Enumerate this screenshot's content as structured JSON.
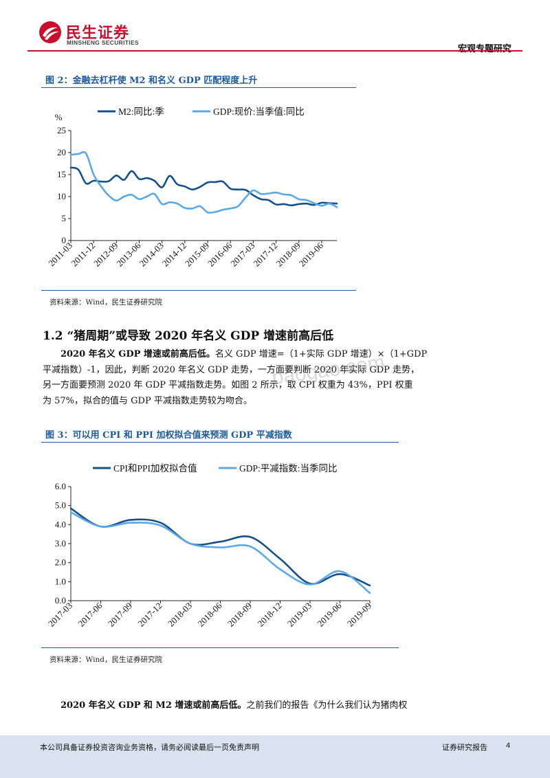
{
  "header": {
    "brand_cn": "民生证券",
    "brand_en": "MINSHENG SECURITIES",
    "report_type": "宏观专题研究",
    "brand_color": "#c8102e"
  },
  "figure2": {
    "title": "图 2：金融去杠杆使 M2 和名义 GDP 匹配程度上升",
    "source": "资料来源：Wind，民生证券研究院"
  },
  "section": {
    "title": "1.2 “猪周期”或导致 2020 年名义 GDP 增速前高后低"
  },
  "paragraph1": {
    "lead": "2020 年名义 GDP 增速或前高后低。",
    "line1_rest": "名义 GDP 增速=（1+实际 GDP 增速）×（1+GDP",
    "line2": "平减指数）-1，因此，判断 2020 年名义 GDP 走势，一方面要判断 2020 年实际 GDP 走势，",
    "line3": "另一方面要预测 2020 年 GDP 平减指数走势。如图 2 所示，取 CPI 权重为 43%，PPI 权重",
    "line4": "为 57%，拟合的值与 GDP 平减指数走势较为吻合。"
  },
  "watermark": "baogao.com",
  "figure3": {
    "title": "图 3：可以用 CPI 和 PPI 加权拟合值来预测 GDP 平减指数",
    "source": "资料来源：Wind，民生证券研究院"
  },
  "paragraph2": {
    "lead": "2020 年名义 GDP 和 M2 增速或前高后低。",
    "rest": "之前我们的报告《为什么我们认为猪肉权"
  },
  "footer": {
    "disclaimer": "本公司具备证券投资咨询业务资格，请务必阅读最后一页免责声明",
    "report_label": "证券研究报告",
    "page": "4"
  },
  "chart_data": [
    {
      "type": "line",
      "y_unit_label": "%",
      "ylim": [
        0,
        25
      ],
      "yticks": [
        "0",
        "5",
        "10",
        "15",
        "20",
        "25"
      ],
      "xlim": [
        0,
        35
      ],
      "xtick_labels": [
        "2011-03",
        "2011-12",
        "2012-09",
        "2013-06",
        "2014-03",
        "2014-12",
        "2015-09",
        "2016-06",
        "2017-03",
        "2017-12",
        "2018-09",
        "2019-06"
      ],
      "xtick_index": [
        0,
        3,
        6,
        9,
        12,
        15,
        18,
        21,
        24,
        27,
        30,
        33
      ],
      "legend_position": "top",
      "series": [
        {
          "name": "M2:同比:季",
          "color": "#15508a",
          "values": [
            16.6,
            16.1,
            13.0,
            13.6,
            13.4,
            13.5,
            14.8,
            13.8,
            15.8,
            14.0,
            14.2,
            13.6,
            12.1,
            14.7,
            12.8,
            12.3,
            11.6,
            12.2,
            13.2,
            13.3,
            13.4,
            11.8,
            11.6,
            11.5,
            10.3,
            9.4,
            9.2,
            8.2,
            8.3,
            8.0,
            8.3,
            8.4,
            8.1,
            8.6,
            8.5,
            8.4
          ]
        },
        {
          "name": "GDP:现价:当季值:同比",
          "color": "#5ba8e6",
          "values": [
            19.5,
            19.7,
            19.8,
            15.0,
            12.3,
            10.2,
            9.1,
            10.0,
            10.4,
            9.4,
            10.0,
            10.6,
            8.3,
            8.7,
            8.4,
            7.4,
            7.3,
            7.8,
            6.4,
            6.5,
            7.0,
            7.3,
            7.8,
            9.8,
            11.4,
            10.6,
            10.7,
            10.9,
            10.5,
            10.3,
            9.4,
            9.2,
            8.5,
            7.9,
            8.4,
            7.6
          ]
        }
      ]
    },
    {
      "type": "line",
      "ylim": [
        0,
        6
      ],
      "yticks": [
        "0.0",
        "1.0",
        "2.0",
        "3.0",
        "4.0",
        "5.0",
        "6.0"
      ],
      "xlim": [
        0,
        10
      ],
      "x": [
        "2017-03",
        "2017-06",
        "2017-09",
        "2017-12",
        "2018-03",
        "2018-06",
        "2018-09",
        "2018-12",
        "2019-03",
        "2019-06",
        "2019-09"
      ],
      "legend_position": "top",
      "series": [
        {
          "name": "CPI和PPI加权拟合值",
          "color": "#15508a",
          "values": [
            4.85,
            3.9,
            4.25,
            4.1,
            3.0,
            3.1,
            3.35,
            2.2,
            0.9,
            1.4,
            0.8
          ]
        },
        {
          "name": "GDP:平减指数:当季同比",
          "color": "#5ba8e6",
          "values": [
            4.65,
            3.9,
            4.1,
            3.95,
            3.0,
            2.8,
            2.85,
            1.65,
            0.85,
            1.55,
            0.4
          ]
        }
      ]
    }
  ]
}
